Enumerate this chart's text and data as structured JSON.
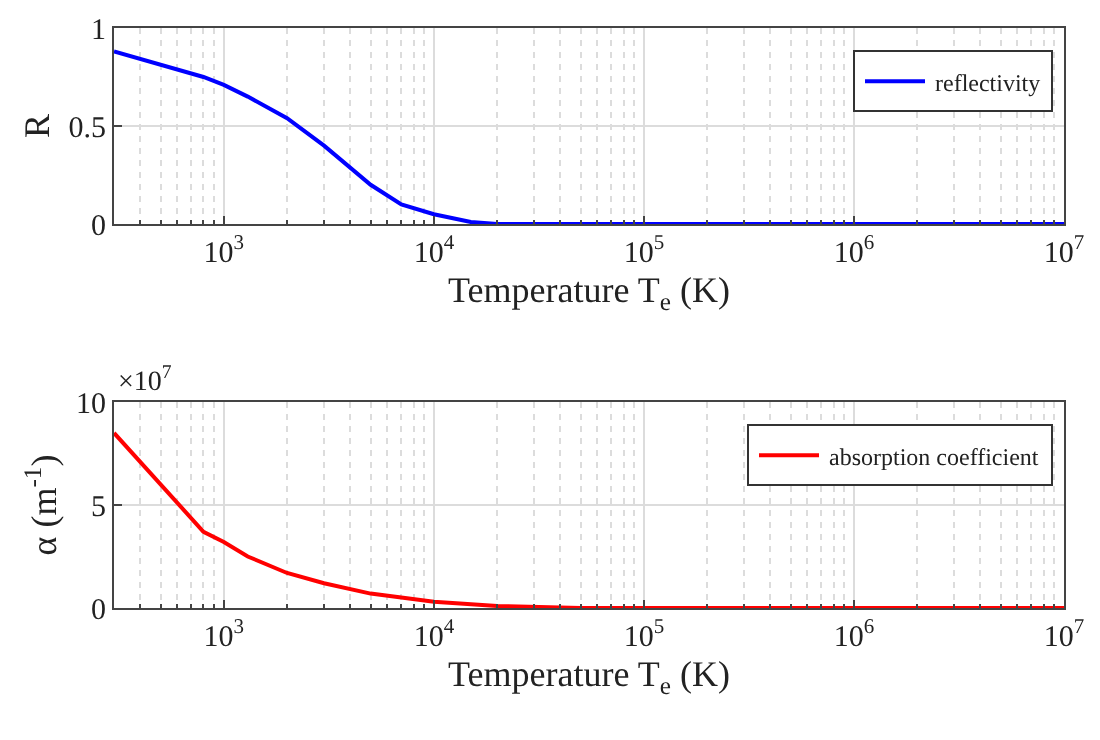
{
  "chart_data": [
    {
      "type": "line",
      "xlabel": "Temperature T$_{e}$ (K)",
      "ylabel": "R",
      "x": [
        300,
        800,
        1000,
        1300,
        2000,
        3000,
        5000,
        7000,
        10000,
        15000,
        20000,
        30000,
        100000,
        1000000,
        10000000
      ],
      "series": [
        {
          "name": "reflectivity",
          "color": "#0000ff",
          "values": [
            0.88,
            0.75,
            0.71,
            0.65,
            0.54,
            0.4,
            0.2,
            0.1,
            0.05,
            0.01,
            0,
            0,
            0,
            0,
            0
          ]
        }
      ],
      "xlim": [
        300,
        10000000
      ],
      "xticks": [
        {
          "value": 1000,
          "label": "10$^{3}$"
        },
        {
          "value": 10000,
          "label": "10$^{4}$"
        },
        {
          "value": 100000,
          "label": "10$^{5}$"
        },
        {
          "value": 1000000,
          "label": "10$^{6}$"
        },
        {
          "value": 10000000,
          "label": "10$^{7}$"
        }
      ],
      "ylim": [
        0,
        1
      ],
      "yticks": [
        0,
        0.5,
        1
      ],
      "log": "x",
      "grid": true,
      "legend": "top right",
      "marker": "none",
      "line_style": "solid"
    },
    {
      "type": "line",
      "xlabel": "Temperature T$_{e}$ (K)",
      "ylabel": "α (m$^{-1}$)",
      "annotations": [
        "×10$^{7}$"
      ],
      "x": [
        300,
        800,
        1000,
        1300,
        2000,
        3000,
        5000,
        10000,
        20000,
        50000,
        100000,
        1000000,
        10000000
      ],
      "series": [
        {
          "name": "absorption coefficient",
          "color": "#ff0000",
          "values": [
            8.5,
            3.7,
            3.2,
            2.5,
            1.7,
            1.2,
            0.7,
            0.3,
            0.1,
            0,
            0,
            0,
            0
          ]
        }
      ],
      "xlim": [
        300,
        10000000
      ],
      "xticks": [
        {
          "value": 1000,
          "label": "10$^{3}$"
        },
        {
          "value": 10000,
          "label": "10$^{4}$"
        },
        {
          "value": 100000,
          "label": "10$^{5}$"
        },
        {
          "value": 1000000,
          "label": "10$^{6}$"
        },
        {
          "value": 10000000,
          "label": "10$^{7}$"
        }
      ],
      "ylim": [
        0,
        10
      ],
      "yticks": [
        0,
        5,
        10
      ],
      "log": "x",
      "grid": true,
      "legend": "top right",
      "marker": "none",
      "line_style": "solid"
    }
  ]
}
